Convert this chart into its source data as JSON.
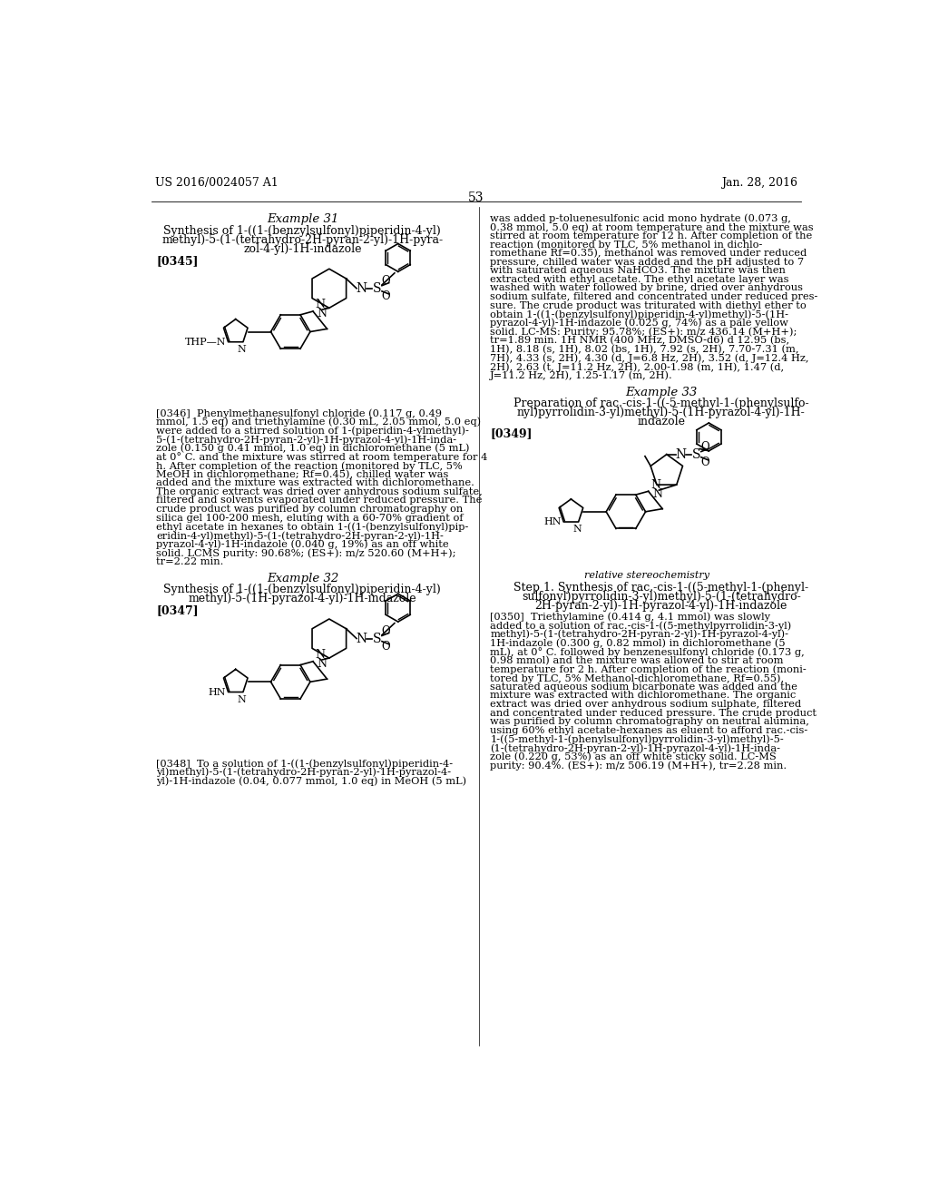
{
  "bg_color": "#ffffff",
  "header_left": "US 2016/0024057 A1",
  "header_right": "Jan. 28, 2016",
  "page_number": "53",
  "left_col": {
    "example31_title": "Example 31",
    "example31_subtitle_lines": [
      "Synthesis of 1-((1-(benzylsulfonyl)piperidin-4-yl)",
      "methyl)-5-(1-(tetrahydro-2H-pyran-2-yl)-1H-pyra-",
      "zol-4-yl)-1H-indazole"
    ],
    "para345": "[0345]",
    "para346_lines": [
      "[0346]  Phenylmethanesulfonyl chloride (0.117 g, 0.49",
      "mmol, 1.5 eq) and triethylamine (0.30 mL, 2.05 mmol, 5.0 eq)",
      "were added to a stirred solution of 1-(piperidin-4-ylmethyl)-",
      "5-(1-(tetrahydro-2H-pyran-2-yl)-1H-pyrazol-4-yl)-1H-inda-",
      "zole (0.150 g 0.41 mmol, 1.0 eq) in dichloromethane (5 mL)",
      "at 0° C. and the mixture was stirred at room temperature for 4",
      "h. After completion of the reaction (monitored by TLC, 5%",
      "MeOH in dichloromethane; Rf=0.45), chilled water was",
      "added and the mixture was extracted with dichloromethane.",
      "The organic extract was dried over anhydrous sodium sulfate,",
      "filtered and solvents evaporated under reduced pressure. The",
      "crude product was purified by column chromatography on",
      "silica gel 100-200 mesh, eluting with a 60-70% gradient of",
      "ethyl acetate in hexanes to obtain 1-((1-(benzylsulfonyl)pip-",
      "eridin-4-yl)methyl)-5-(1-(tetrahydro-2H-pyran-2-yl)-1H-",
      "pyrazol-4-yl)-1H-indazole (0.040 g, 19%) as an off white",
      "solid. LCMS purity: 90.68%; (ES+): m/z 520.60 (M+H+);",
      "tr=2.22 min."
    ],
    "example32_title": "Example 32",
    "example32_subtitle_lines": [
      "Synthesis of 1-((1-(benzylsulfonyl)piperidin-4-yl)",
      "methyl)-5-(1H-pyrazol-4-yl)-1H-indazole"
    ],
    "para347": "[0347]",
    "para348_lines": [
      "[0348]  To a solution of 1-((1-(benzylsulfonyl)piperidin-4-",
      "yl)methyl)-5-(1-(tetrahydro-2H-pyran-2-yl)-1H-pyrazol-4-",
      "yl)-1H-indazole (0.04, 0.077 mmol, 1.0 eq) in MeOH (5 mL)"
    ]
  },
  "right_col": {
    "para_cont_lines": [
      "was added p-toluenesulfonic acid mono hydrate (0.073 g,",
      "0.38 mmol, 5.0 eq) at room temperature and the mixture was",
      "stirred at room temperature for 12 h. After completion of the",
      "reaction (monitored by TLC, 5% methanol in dichlo-",
      "romethane Rf=0.35), methanol was removed under reduced",
      "pressure, chilled water was added and the pH adjusted to 7",
      "with saturated aqueous NaHCO3. The mixture was then",
      "extracted with ethyl acetate. The ethyl acetate layer was",
      "washed with water followed by brine, dried over anhydrous",
      "sodium sulfate, filtered and concentrated under reduced pres-",
      "sure. The crude product was triturated with diethyl ether to",
      "obtain 1-((1-(benzylsulfonyl)piperidin-4-yl)methyl)-5-(1H-",
      "pyrazol-4-yl)-1H-indazole (0.025 g, 74%) as a pale yellow",
      "solid. LC-MS: Purity: 95.78%; (ES+): m/z 436.14 (M+H+);",
      "tr=1.89 min. 1H NMR (400 MHz, DMSO-d6) d 12.95 (bs,",
      "1H), 8.18 (s, 1H), 8.02 (bs, 1H), 7.92 (s, 2H), 7.70-7.31 (m,",
      "7H), 4.33 (s, 2H), 4.30 (d, J=6.8 Hz, 2H), 3.52 (d, J=12.4 Hz,",
      "2H), 2.63 (t, J=11.2 Hz, 2H), 2.00-1.98 (m, 1H), 1.47 (d,",
      "J=11.2 Hz, 2H), 1.25-1.17 (m, 2H)."
    ],
    "example33_title": "Example 33",
    "example33_subtitle_lines": [
      "Preparation of rac.-cis-1-((-5-methyl-1-(phenylsulfo-",
      "nyl)pyrrolidin-3-yl)methyl)-5-(1H-pyrazol-4-yl)-1H-",
      "indazole"
    ],
    "para349": "[0349]",
    "stereo_note": "relative stereochemistry",
    "step1_title_lines": [
      "Step 1. Synthesis of rac.-cis-1-((5-methyl-1-(phenyl-",
      "sulfonyl)pyrrolidin-3-yl)methyl)-5-(1-(tetrahydro-",
      "2H-pyran-2-yl)-1H-pyrazol-4-yl)-1H-indazole"
    ],
    "para350_lines": [
      "[0350]  Triethylamine (0.414 g, 4.1 mmol) was slowly",
      "added to a solution of rac.-cis-1-((5-methylpyrrolidin-3-yl)",
      "methyl)-5-(1-(tetrahydro-2H-pyran-2-yl)-1H-pyrazol-4-yl)-",
      "1H-indazole (0.300 g, 0.82 mmol) in dichloromethane (5",
      "mL), at 0° C. followed by benzenesulfonyl chloride (0.173 g,",
      "0.98 mmol) and the mixture was allowed to stir at room",
      "temperature for 2 h. After completion of the reaction (moni-",
      "tored by TLC, 5% Methanol-dichloromethane, Rf=0.55),",
      "saturated aqueous sodium bicarbonate was added and the",
      "mixture was extracted with dichloromethane. The organic",
      "extract was dried over anhydrous sodium sulphate, filtered",
      "and concentrated under reduced pressure. The crude product",
      "was purified by column chromatography on neutral alumina,",
      "using 60% ethyl acetate-hexanes as eluent to afford rac.-cis-",
      "1-((5-methyl-1-(phenylsulfonyl)pyrrolidin-3-yl)methyl)-5-",
      "(1-(tetrahydro-2H-pyran-2-yl)-1H-pyrazol-4-yl)-1H-inda-",
      "zole (0.220 g, 53%) as an off white sticky solid. LC-MS",
      "purity: 90.4%. (ES+): m/z 506.19 (M+H+), tr=2.28 min."
    ]
  }
}
